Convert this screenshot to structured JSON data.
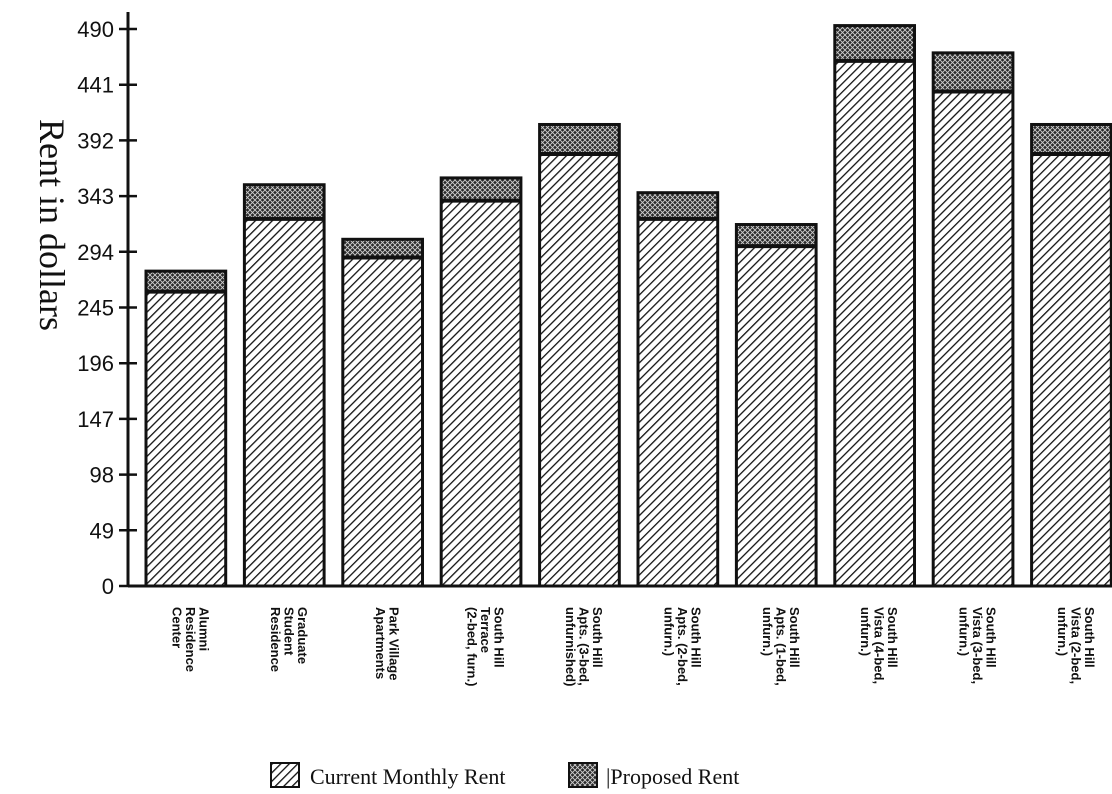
{
  "chart_data": {
    "type": "bar",
    "stacked": true,
    "ylabel": "Rent in dollars",
    "xlabel": "",
    "title": "",
    "ylim": [
      0,
      490
    ],
    "yticks": [
      "0",
      "49",
      "98",
      "147",
      "196",
      "245",
      "294",
      "343",
      "392",
      "441",
      "490"
    ],
    "categories": [
      [
        "Alumni",
        "Residence",
        "Center"
      ],
      [
        "Graduate",
        "Student",
        "Residence"
      ],
      [
        "Park Village",
        "Apartments"
      ],
      [
        "South Hill",
        "Terrace",
        "(2-bed, furn.)"
      ],
      [
        "South Hill",
        "Apts. (3-bed,",
        "unfurnished)"
      ],
      [
        "South Hill",
        "Apts. (2-bed,",
        "unfurn.)"
      ],
      [
        "South Hill",
        "Apts. (1-bed,",
        "unfurn.)"
      ],
      [
        "South Hill",
        "Vista (4-bed,",
        "unfurn.)"
      ],
      [
        "South Hill",
        "Vista (3-bed,",
        "unfurn.)"
      ],
      [
        "South Hill",
        "Vista (2-bed,",
        "unfurn.)"
      ]
    ],
    "series": [
      {
        "name": "Current Monthly Rent",
        "values": [
          259,
          323,
          289,
          339,
          380,
          323,
          299,
          462,
          435,
          380
        ],
        "pattern": "diagonal-hatch"
      },
      {
        "name": "Proposed Rent",
        "values": [
          18,
          30,
          16,
          20,
          26,
          23,
          19,
          31,
          34,
          26
        ],
        "pattern": "crosshatch"
      }
    ],
    "grid": false,
    "legend_position": "bottom-center"
  },
  "legend": {
    "current_label": "Current Monthly Rent",
    "proposed_label": "|Proposed Rent"
  },
  "colors": {
    "ink": "#111111",
    "background": "#ffffff"
  }
}
